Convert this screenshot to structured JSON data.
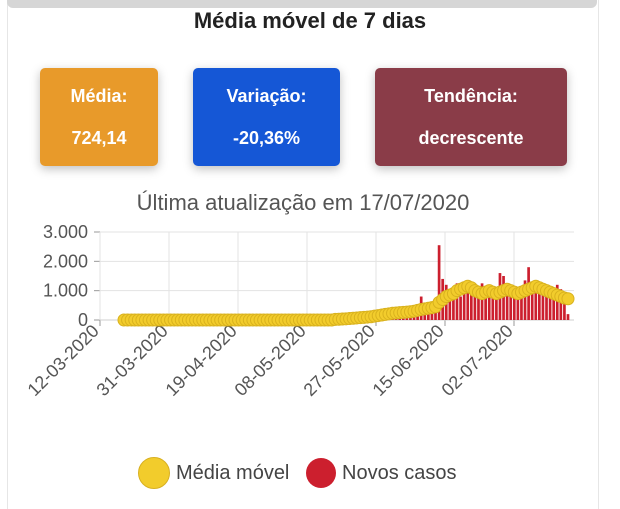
{
  "title": "Média móvel de 7 dias",
  "kpis": [
    {
      "label": "Média:",
      "value": "724,14",
      "color": "#e89a2a"
    },
    {
      "label": "Variação:",
      "value": "-20,36%",
      "color": "#1557d6"
    },
    {
      "label": "Tendência:",
      "value": "decrescente",
      "color": "#8a3c48"
    }
  ],
  "updated": "Última atualização em 17/07/2020",
  "legend": {
    "moving_avg": {
      "label": "Média móvel",
      "color": "#f2cc2c"
    },
    "new_cases": {
      "label": "Novos casos",
      "color": "#cc1f2e"
    }
  },
  "chart_data": {
    "type": "bar",
    "ylim": [
      0,
      3000
    ],
    "yticks": [
      "3.000",
      "2.000",
      "1.000",
      "0"
    ],
    "ytick_values": [
      3000,
      2000,
      1000,
      0
    ],
    "xticks": [
      "12-03-2020",
      "31-03-2020",
      "19-04-2020",
      "08-05-2020",
      "27-05-2020",
      "15-06-2020",
      "02-07-2020"
    ],
    "series": [
      {
        "name": "Novos casos",
        "type": "bar",
        "values": [
          0,
          0,
          0,
          0,
          0,
          0,
          0,
          0,
          0,
          0,
          0,
          0,
          0,
          0,
          0,
          0,
          0,
          0,
          0,
          0,
          0,
          0,
          0,
          0,
          0,
          0,
          0,
          0,
          0,
          0,
          0,
          0,
          0,
          0,
          0,
          0,
          0,
          0,
          0,
          0,
          0,
          0,
          0,
          0,
          0,
          0,
          0,
          0,
          0,
          0,
          0,
          0,
          0,
          0,
          0,
          10,
          15,
          20,
          25,
          30,
          35,
          45,
          50,
          60,
          70,
          80,
          90,
          100,
          120,
          130,
          150,
          200,
          250,
          300,
          350,
          260,
          380,
          250,
          400,
          330,
          420,
          310,
          380,
          800,
          450,
          520,
          400,
          350,
          2550,
          1400,
          1200,
          900,
          700,
          1250,
          800,
          1100,
          950,
          900,
          1000,
          850,
          1250,
          1000,
          900,
          1150,
          1050,
          1600,
          1500,
          900,
          1100,
          1000,
          950,
          850,
          1350,
          1800,
          1100,
          1250,
          950,
          1200,
          1100,
          800,
          900,
          1200,
          1050,
          950,
          200
        ]
      },
      {
        "name": "Média móvel",
        "type": "scatter",
        "values": [
          0,
          0,
          0,
          0,
          0,
          0,
          0,
          0,
          0,
          0,
          0,
          0,
          0,
          0,
          0,
          0,
          0,
          0,
          0,
          0,
          0,
          0,
          0,
          0,
          0,
          0,
          0,
          0,
          0,
          0,
          0,
          0,
          0,
          0,
          0,
          0,
          0,
          0,
          0,
          0,
          0,
          0,
          0,
          0,
          0,
          0,
          0,
          0,
          0,
          0,
          0,
          0,
          0,
          0,
          0,
          0,
          0,
          0,
          0,
          20,
          25,
          35,
          40,
          50,
          60,
          70,
          80,
          90,
          100,
          110,
          130,
          150,
          170,
          190,
          210,
          230,
          240,
          250,
          260,
          270,
          280,
          300,
          330,
          360,
          380,
          400,
          420,
          450,
          600,
          700,
          800,
          850,
          900,
          1000,
          1050,
          1100,
          1150,
          1100,
          1000,
          950,
          900,
          950,
          1000,
          950,
          900,
          950,
          1000,
          1050,
          1000,
          950,
          900,
          950,
          1000,
          1050,
          1100,
          1150,
          1100,
          1050,
          1000,
          950,
          900,
          850,
          800,
          750,
          724
        ]
      }
    ]
  }
}
